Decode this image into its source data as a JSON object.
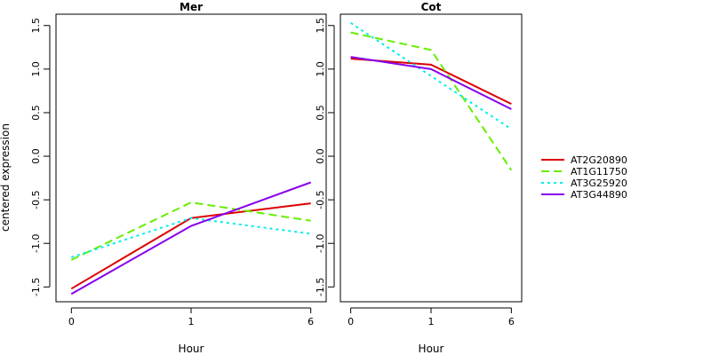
{
  "chart_data": {
    "type": "line",
    "ylabel": "centered expression",
    "legend": {
      "placement": "right",
      "entries": [
        "AT2G20890",
        "AT1G11750",
        "AT3G25920",
        "AT3G44890"
      ]
    },
    "series_styles": [
      {
        "name": "AT2G20890",
        "color": "#dd0000",
        "dash": "solid"
      },
      {
        "name": "AT1G11750",
        "color": "#66ee00",
        "dash": "dashed"
      },
      {
        "name": "AT3G25920",
        "color": "#00eeee",
        "dash": "dotted"
      },
      {
        "name": "AT3G44890",
        "color": "#8800ee",
        "dash": "solid"
      }
    ],
    "panels": [
      {
        "title": "Mer",
        "xlabel": "Hour",
        "categories": [
          "0",
          "1",
          "6"
        ],
        "yticks": [
          "-1.5",
          "-1.0",
          "-0.5",
          "0.0",
          "0.5",
          "1.0",
          "1.5"
        ],
        "ylim": [
          -1.67,
          1.63
        ],
        "series": [
          {
            "name": "AT2G20890",
            "values": [
              -1.52,
              -0.71,
              -0.54
            ]
          },
          {
            "name": "AT1G11750",
            "values": [
              -1.19,
              -0.53,
              -0.74
            ]
          },
          {
            "name": "AT3G25920",
            "values": [
              -1.16,
              -0.71,
              -0.89
            ]
          },
          {
            "name": "AT3G44890",
            "values": [
              -1.58,
              -0.8,
              -0.3
            ]
          }
        ]
      },
      {
        "title": "Cot",
        "xlabel": "Hour",
        "categories": [
          "0",
          "1",
          "6"
        ],
        "yticks": [
          "-1.5",
          "-1.0",
          "-0.5",
          "0.0",
          "0.5",
          "1.0",
          "1.5"
        ],
        "ylim": [
          -1.67,
          1.63
        ],
        "series": [
          {
            "name": "AT2G20890",
            "values": [
              1.12,
              1.05,
              0.6
            ]
          },
          {
            "name": "AT1G11750",
            "values": [
              1.42,
              1.22,
              -0.16
            ]
          },
          {
            "name": "AT3G25920",
            "values": [
              1.53,
              0.92,
              0.31
            ]
          },
          {
            "name": "AT3G44890",
            "values": [
              1.14,
              1.0,
              0.54
            ]
          }
        ]
      }
    ]
  }
}
